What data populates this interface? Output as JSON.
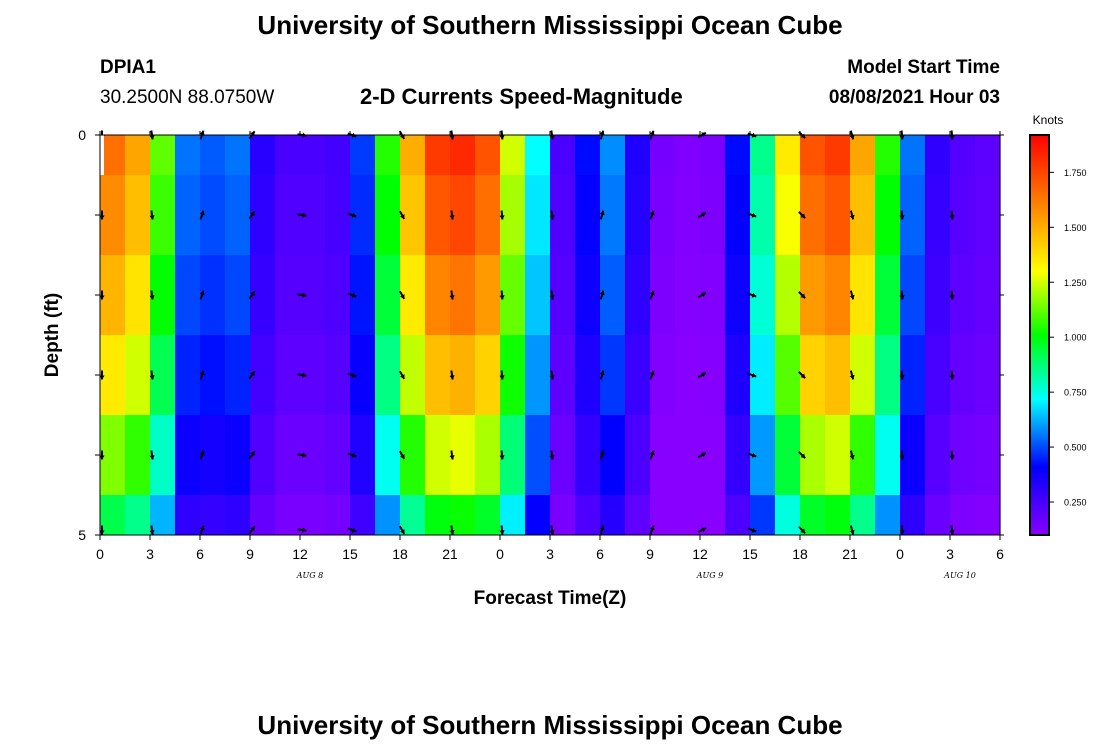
{
  "header": {
    "title": "University of Southern Mississippi Ocean Cube",
    "station_id": "DPIA1",
    "coords": "30.2500N  88.0750W",
    "chart_title": "2-D Currents Speed-Magnitude",
    "model_start_label": "Model Start Time",
    "model_start_value": "08/08/2021 Hour 03"
  },
  "footer": {
    "title": "University of Southern Mississippi Ocean Cube"
  },
  "chart_data": {
    "type": "heatmap",
    "title": "2-D Currents Speed-Magnitude",
    "xlabel": "Forecast Time(Z)",
    "ylabel": "Depth (ft)",
    "x_hours": [
      0,
      3,
      6,
      9,
      12,
      15,
      18,
      21,
      24,
      27,
      30,
      33,
      36,
      39,
      42,
      45,
      48,
      51,
      54
    ],
    "x_tick_labels": [
      "0",
      "3",
      "6",
      "9",
      "12",
      "15",
      "18",
      "21",
      "0",
      "3",
      "6",
      "9",
      "12",
      "15",
      "18",
      "21",
      "0",
      "3",
      "6"
    ],
    "ylim": [
      0,
      5
    ],
    "y_tick_labels": [
      "0",
      "5"
    ],
    "depths": [
      0,
      1,
      2,
      3,
      4,
      5
    ],
    "date_labels": [
      {
        "hour": 12,
        "text": "AUG 8"
      },
      {
        "hour": 36,
        "text": "AUG 9"
      },
      {
        "hour": 51,
        "text": "AUG 10"
      }
    ],
    "speed_profile_knots": [
      1.65,
      1.52,
      1.12,
      0.55,
      0.52,
      0.55,
      0.32,
      0.24,
      0.24,
      0.26,
      0.48,
      1.05,
      1.5,
      1.78,
      1.82,
      1.72,
      1.25,
      0.72,
      0.24,
      0.42,
      0.58,
      0.34,
      0.14,
      0.12,
      0.13,
      0.42,
      0.85,
      1.35,
      1.72,
      1.78,
      1.52,
      1.05,
      0.55,
      0.3,
      0.22,
      0.2
    ],
    "depth_factors": [
      1.0,
      0.96,
      0.9,
      0.82,
      0.7,
      0.56
    ],
    "vector_directions_deg": {
      "0": 180,
      "3": 172,
      "6": 18,
      "9": 35,
      "12": 100,
      "15": 110,
      "18": 150,
      "21": 172,
      "24": 175,
      "27": 172,
      "30": 15,
      "33": 20,
      "36": 60,
      "39": 110,
      "42": 135,
      "45": 165,
      "48": 175,
      "51": 175
    },
    "colorbar": {
      "label": "Knots",
      "min": 0.1,
      "max": 1.92,
      "ticks": [
        "0.250",
        "0.500",
        "0.750",
        "1.000",
        "1.250",
        "1.500",
        "1.750"
      ]
    }
  },
  "colors": {
    "arrow": "#000000",
    "background": "#ffffff",
    "land_mask": "#ffffff"
  }
}
